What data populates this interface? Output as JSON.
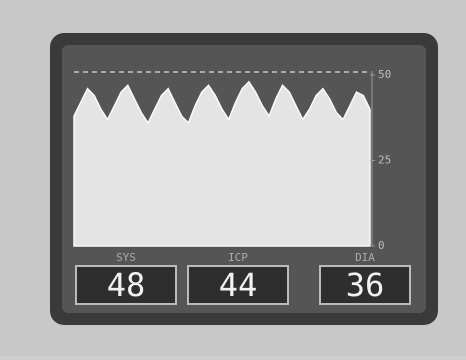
{
  "chart_data": {
    "type": "area",
    "values": [
      38,
      42,
      46,
      44,
      40,
      37,
      41,
      45,
      47,
      43,
      39,
      36,
      40,
      44,
      46,
      42,
      38,
      36,
      41,
      45,
      47,
      44,
      40,
      37,
      42,
      46,
      48,
      45,
      41,
      38,
      43,
      47,
      45,
      41,
      37,
      40,
      44,
      46,
      43,
      39,
      37,
      41,
      45,
      44,
      40
    ],
    "color": "#e4e4e4",
    "ylim": [
      0,
      50
    ],
    "yticks": [
      0,
      25,
      50
    ],
    "readouts": [
      {
        "name": "SYS",
        "value": 48
      },
      {
        "name": "ICP",
        "value": 44
      },
      {
        "name": "DIA",
        "value": 36
      }
    ]
  }
}
